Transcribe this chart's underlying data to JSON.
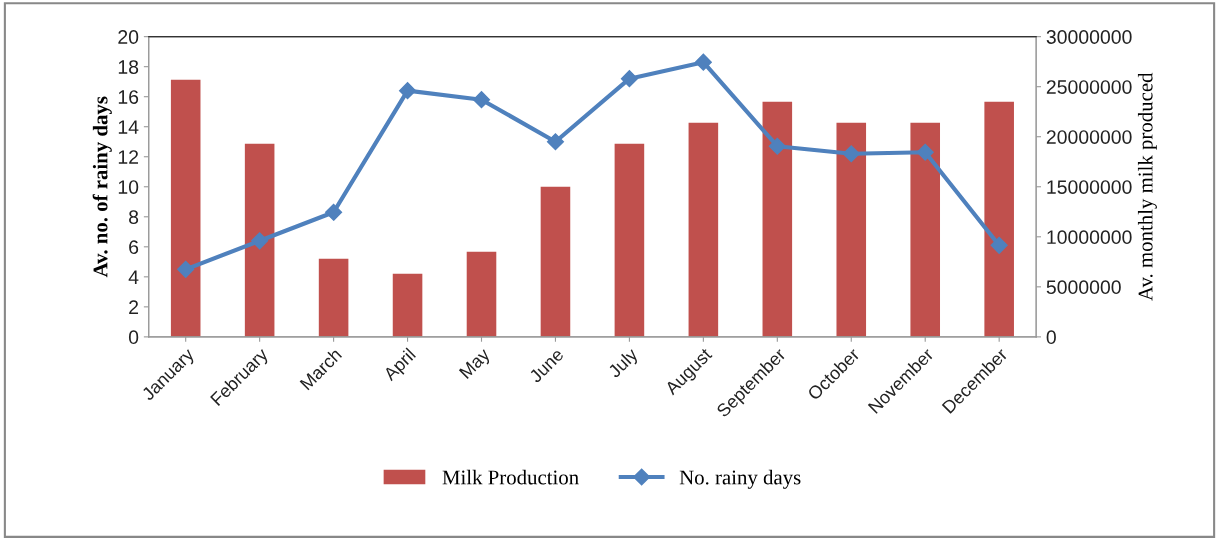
{
  "chart_data": {
    "type": "bar",
    "categories": [
      "January",
      "February",
      "March",
      "April",
      "May",
      "June",
      "July",
      "August",
      "September",
      "October",
      "November",
      "December"
    ],
    "series": [
      {
        "name": "Milk Production",
        "axis": "y2",
        "color": "#c0504d",
        "values": [
          25700000,
          19300000,
          7800000,
          6300000,
          8500000,
          15000000,
          19300000,
          21400000,
          23500000,
          21400000,
          21400000,
          23500000
        ]
      },
      {
        "name": "No. rainy days",
        "type": "line",
        "axis": "y",
        "color": "#4f81bd",
        "marker": "diamond",
        "values": [
          4.5,
          6.4,
          8.3,
          16.4,
          15.8,
          13.0,
          17.2,
          18.3,
          12.7,
          12.2,
          12.3,
          6.1
        ]
      }
    ],
    "ylabel": "Av. no. of rainy days",
    "y2label": "Av. monthly milk produced",
    "ylim": [
      0,
      20
    ],
    "yticks": [
      0,
      2,
      4,
      6,
      8,
      10,
      12,
      14,
      16,
      18,
      20
    ],
    "y2lim": [
      0,
      30000000
    ],
    "y2ticks": [
      0,
      5000000,
      10000000,
      15000000,
      20000000,
      25000000,
      30000000
    ],
    "grid": false,
    "legend": "bottom"
  }
}
